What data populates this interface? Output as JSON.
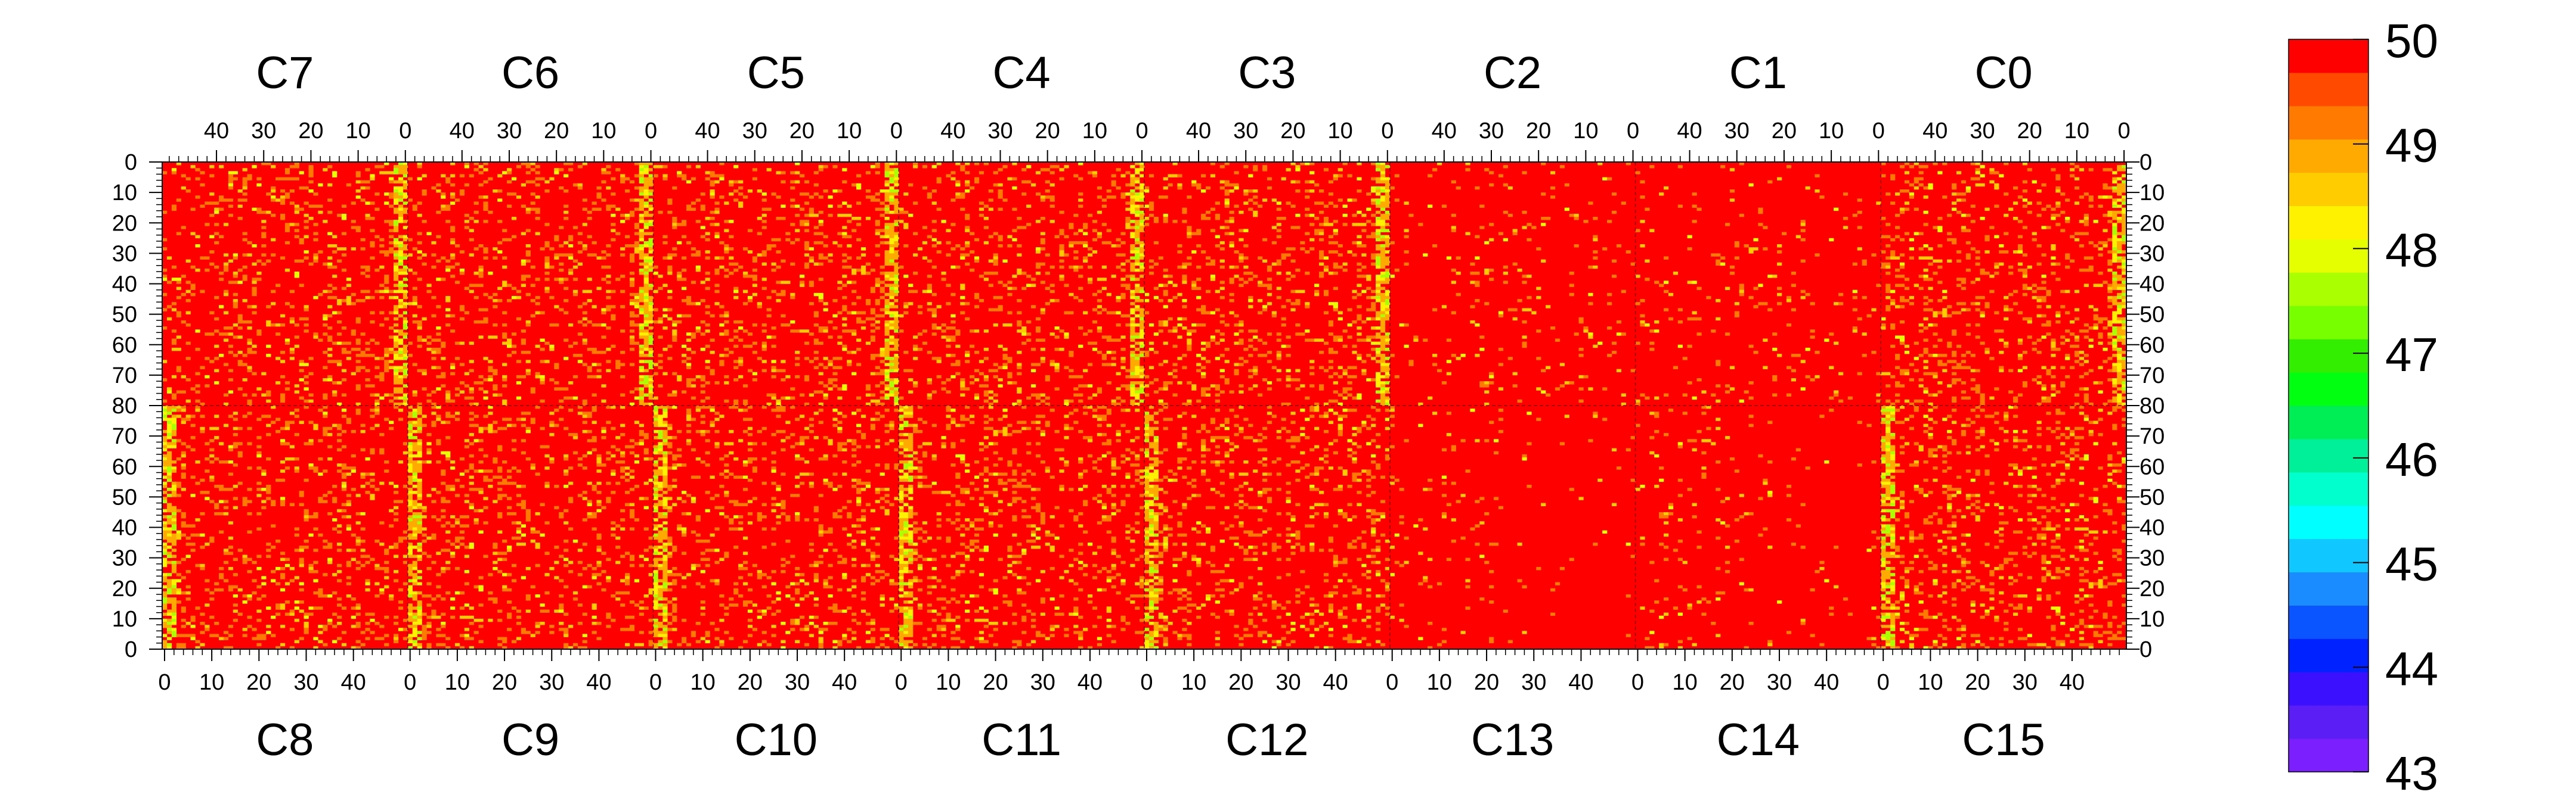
{
  "chart_data": {
    "type": "heatmap",
    "title": "",
    "top_chip_labels": [
      "C7",
      "C6",
      "C5",
      "C4",
      "C3",
      "C2",
      "C1",
      "C0"
    ],
    "bottom_chip_labels": [
      "C8",
      "C9",
      "C10",
      "C11",
      "C12",
      "C13",
      "C14",
      "C15"
    ],
    "top_x_ticks": [
      "40",
      "30",
      "20",
      "10",
      "0"
    ],
    "top_x_tick_values": [
      40,
      30,
      20,
      10,
      0
    ],
    "bottom_x_ticks": [
      "0",
      "10",
      "20",
      "30",
      "40"
    ],
    "bottom_x_tick_values": [
      0,
      10,
      20,
      30,
      40
    ],
    "columns_per_chip": 52,
    "rows_per_half": 80,
    "y_ticks_top_half": [
      "0",
      "10",
      "20",
      "30",
      "40",
      "50",
      "60",
      "70",
      "80"
    ],
    "y_ticks_bottom_half": [
      "70",
      "60",
      "50",
      "40",
      "30",
      "20",
      "10",
      "0"
    ],
    "y_tick_values_top_half": [
      0,
      10,
      20,
      30,
      40,
      50,
      60,
      70,
      80
    ],
    "y_tick_values_bottom_half": [
      70,
      60,
      50,
      40,
      30,
      20,
      10,
      0
    ],
    "z_range": [
      43,
      50
    ],
    "z_ticks": [
      "50",
      "49",
      "48",
      "47",
      "46",
      "45",
      "44",
      "43"
    ],
    "z_tick_values": [
      50,
      49,
      48,
      47,
      46,
      45,
      44,
      43
    ],
    "palette": [
      "#7b1fff",
      "#5b1ff5",
      "#3a10ff",
      "#0022ff",
      "#0a55ff",
      "#1a8cff",
      "#10c8ff",
      "#00ffff",
      "#00ffcc",
      "#00f099",
      "#00ee55",
      "#00ff11",
      "#33ee00",
      "#77ff00",
      "#aaff00",
      "#e6ff00",
      "#fff200",
      "#ffcc00",
      "#ffaa00",
      "#ff7a00",
      "#ff4a00",
      "#ff0000"
    ],
    "dominant_value": 50,
    "chip_summary": [
      {
        "chip": "C7",
        "noise": "moderate",
        "hot_column": "0"
      },
      {
        "chip": "C6",
        "noise": "moderate",
        "hot_column": "0"
      },
      {
        "chip": "C5",
        "noise": "moderate",
        "hot_column": "0"
      },
      {
        "chip": "C4",
        "noise": "moderate",
        "hot_column": "0"
      },
      {
        "chip": "C3",
        "noise": "moderate",
        "hot_column": "0"
      },
      {
        "chip": "C2",
        "noise": "low",
        "hot_column": "none"
      },
      {
        "chip": "C1",
        "noise": "low",
        "hot_column": "none"
      },
      {
        "chip": "C0",
        "noise": "moderate",
        "hot_column": "0"
      }
    ]
  }
}
